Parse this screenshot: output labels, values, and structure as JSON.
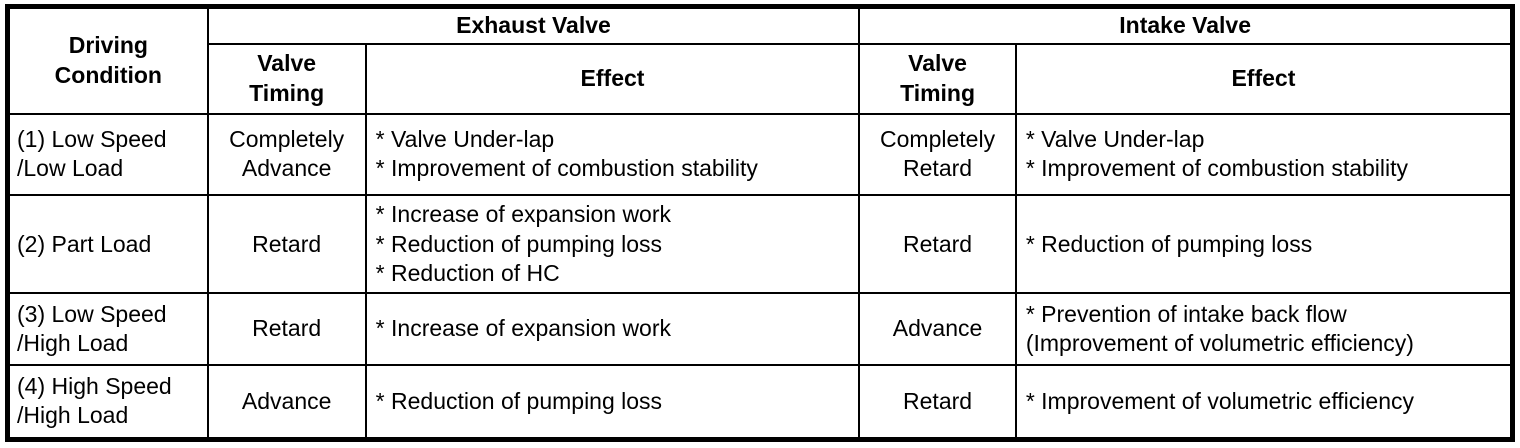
{
  "table": {
    "headers": {
      "driving_condition": [
        "Driving",
        "Condition"
      ],
      "exhaust_valve": "Exhaust Valve",
      "intake_valve": "Intake Valve",
      "valve_timing": [
        "Valve",
        "Timing"
      ],
      "effect": "Effect"
    },
    "rows": [
      {
        "condition": [
          "(1) Low Speed",
          "/Low Load"
        ],
        "exhaust_timing": [
          "Completely",
          "Advance"
        ],
        "exhaust_effect": [
          "* Valve Under-lap",
          "* Improvement of combustion stability"
        ],
        "intake_timing": [
          "Completely",
          "Retard"
        ],
        "intake_effect": [
          "* Valve Under-lap",
          "* Improvement of combustion stability"
        ]
      },
      {
        "condition": [
          "(2) Part Load"
        ],
        "exhaust_timing": [
          "Retard"
        ],
        "exhaust_effect": [
          "* Increase of expansion work",
          "* Reduction of pumping loss",
          "* Reduction of HC"
        ],
        "intake_timing": [
          "Retard"
        ],
        "intake_effect": [
          "* Reduction of pumping loss"
        ]
      },
      {
        "condition": [
          "(3) Low Speed",
          "/High Load"
        ],
        "exhaust_timing": [
          "Retard"
        ],
        "exhaust_effect": [
          "* Increase of expansion work"
        ],
        "intake_timing": [
          "Advance"
        ],
        "intake_effect": [
          "* Prevention of intake back flow",
          "(Improvement of volumetric efficiency)"
        ]
      },
      {
        "condition": [
          "(4) High Speed",
          "/High Load"
        ],
        "exhaust_timing": [
          "Advance"
        ],
        "exhaust_effect": [
          "* Reduction of pumping loss"
        ],
        "intake_timing": [
          "Retard"
        ],
        "intake_effect": [
          "* Improvement of volumetric efficiency"
        ]
      }
    ],
    "colors": {
      "text": "#000000",
      "border": "#000000",
      "background": "#ffffff"
    }
  }
}
